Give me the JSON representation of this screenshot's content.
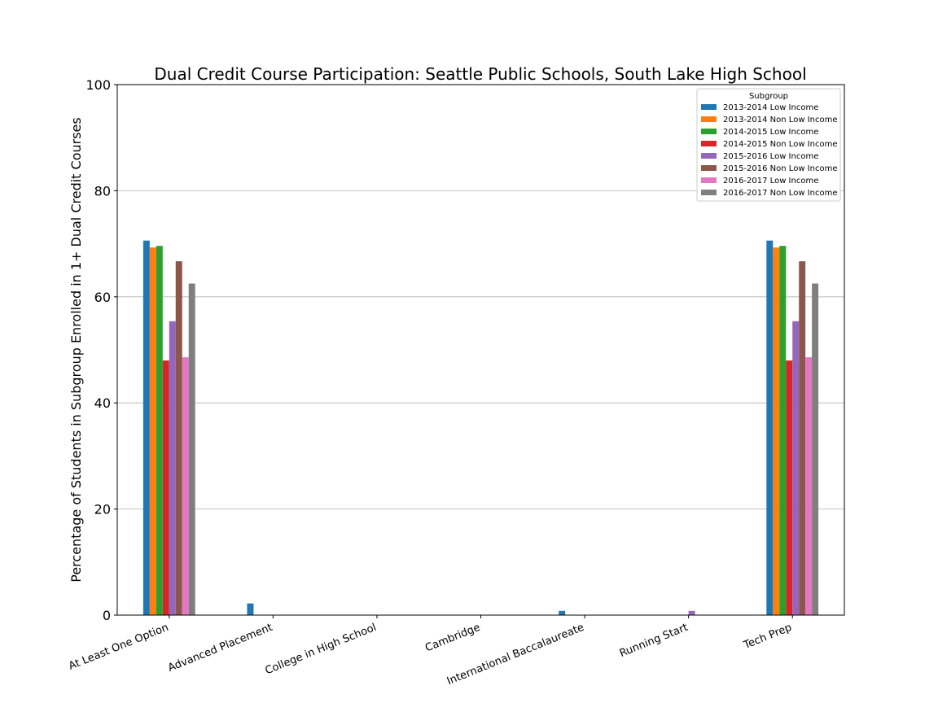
{
  "chart_data": {
    "type": "bar",
    "title": "Dual Credit Course Participation: Seattle Public Schools, South Lake High School",
    "xlabel": "",
    "ylabel": "Percentage of Students in Subgroup Enrolled in 1+ Dual Credit Courses",
    "ylim": [
      0,
      100
    ],
    "yticks": [
      0,
      20,
      40,
      60,
      80,
      100
    ],
    "grid": "horizontal",
    "legend_title": "Subgroup",
    "legend_placement": "top-right",
    "categories": [
      "At Least One Option",
      "Advanced Placement",
      "College in High School",
      "Cambridge",
      "International Baccalaureate",
      "Running Start",
      "Tech Prep"
    ],
    "series": [
      {
        "name": "2013-2014 Low Income",
        "color": "#1f77b4",
        "values": [
          70.6,
          2.2,
          0,
          0,
          0.8,
          0,
          70.6
        ]
      },
      {
        "name": "2013-2014 Non Low Income",
        "color": "#ff7f0e",
        "values": [
          69.3,
          0,
          0,
          0,
          0,
          0,
          69.3
        ]
      },
      {
        "name": "2014-2015 Low Income",
        "color": "#2ca02c",
        "values": [
          69.6,
          0,
          0,
          0,
          0,
          0,
          69.6
        ]
      },
      {
        "name": "2014-2015 Non Low Income",
        "color": "#d62728",
        "values": [
          48.0,
          0,
          0,
          0,
          0,
          0,
          48.0
        ]
      },
      {
        "name": "2015-2016 Low Income",
        "color": "#9467bd",
        "values": [
          55.4,
          0,
          0,
          0,
          0,
          0.8,
          55.4
        ]
      },
      {
        "name": "2015-2016 Non Low Income",
        "color": "#8c564b",
        "values": [
          66.7,
          0,
          0,
          0,
          0,
          0,
          66.7
        ]
      },
      {
        "name": "2016-2017 Low Income",
        "color": "#e377c2",
        "values": [
          48.6,
          0,
          0,
          0,
          0,
          0,
          48.6
        ]
      },
      {
        "name": "2016-2017 Non Low Income",
        "color": "#7f7f7f",
        "values": [
          62.5,
          0,
          0,
          0,
          0,
          0,
          62.5
        ]
      }
    ]
  }
}
